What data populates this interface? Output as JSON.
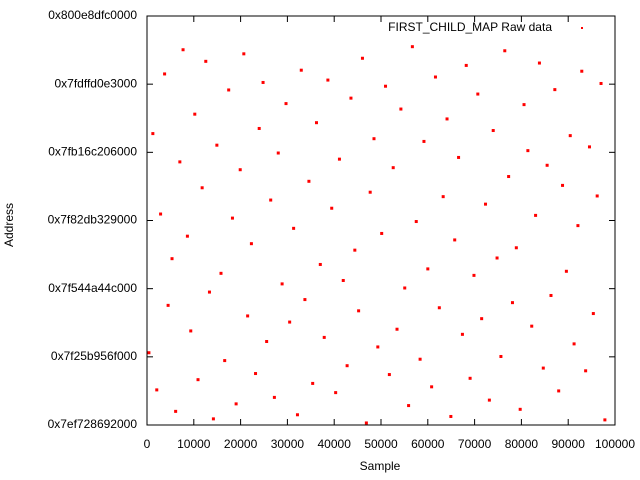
{
  "chart_data": {
    "type": "scatter",
    "xlabel": "Sample",
    "ylabel": "Address",
    "xlim": [
      0,
      100000
    ],
    "xticks": [
      0,
      10000,
      20000,
      30000,
      40000,
      50000,
      60000,
      70000,
      80000,
      90000,
      100000
    ],
    "ylim": [
      139600000000000,
      140800000000000
    ],
    "yticks": [
      {
        "value": 139600000000000,
        "label": "0x7ef728692000"
      },
      {
        "value": 139800000000000,
        "label": "0x7f25b956f000"
      },
      {
        "value": 140000000000000,
        "label": "0x7f544a44c000"
      },
      {
        "value": 140200000000000,
        "label": "0x7f82db329000"
      },
      {
        "value": 140400000000000,
        "label": "0x7fb16c206000"
      },
      {
        "value": 140600000000000,
        "label": "0x7fdffd0e3000"
      },
      {
        "value": 140800000000000,
        "label": "0x800e8dfc0000"
      }
    ],
    "legend": "top right",
    "series": [
      {
        "name": "FIRST_CHILD_MAP Raw data",
        "color": "#ff0000",
        "x": [
          412,
          1250,
          2087,
          2903,
          3760,
          4511,
          5348,
          6120,
          7019,
          7705,
          8634,
          9351,
          10210,
          10902,
          11783,
          12560,
          13347,
          14189,
          14930,
          15811,
          16602,
          17455,
          18260,
          19043,
          19917,
          20688,
          21504,
          22310,
          23192,
          23975,
          24801,
          25566,
          26433,
          27218,
          28046,
          28870,
          29704,
          30481,
          31329,
          32150,
          32964,
          33742,
          34598,
          35402,
          36215,
          37031,
          37868,
          38652,
          39470,
          40311,
          41122,
          41935,
          42760,
          43581,
          44409,
          45217,
          46038,
          46873,
          47690,
          48502,
          49321,
          50148,
          50966,
          51787,
          52608,
          53422,
          54251,
          55073,
          55896,
          56704,
          57532,
          58355,
          59178,
          60003,
          60817,
          61640,
          62462,
          63285,
          64110,
          64927,
          65751,
          66576,
          67399,
          68214,
          69040,
          69865,
          70688,
          71506,
          72331,
          73156,
          73978,
          74800,
          75623,
          76449,
          77271,
          78093,
          78915,
          79740,
          80562,
          81384,
          82207,
          83031,
          83853,
          84676,
          85498,
          86322,
          87145,
          87967,
          88790,
          89613,
          90436,
          91258,
          92080,
          92903,
          93726,
          94548,
          95371,
          96194,
          97016,
          97839
        ],
        "values": [
          139812000000000,
          140455000000000,
          139703000000000,
          140219000000000,
          140630000000000,
          139951000000000,
          140088000000000,
          139640000000000,
          140372000000000,
          140701000000000,
          140154000000000,
          139876000000000,
          140512000000000,
          139733000000000,
          140296000000000,
          140667000000000,
          139990000000000,
          139618000000000,
          140421000000000,
          140045000000000,
          139789000000000,
          140583000000000,
          140207000000000,
          139662000000000,
          140349000000000,
          140689000000000,
          139920000000000,
          140132000000000,
          139751000000000,
          140470000000000,
          140605000000000,
          139845000000000,
          140260000000000,
          139681000000000,
          140398000000000,
          140014000000000,
          140543000000000,
          139902000000000,
          140177000000000,
          139630000000000,
          140641000000000,
          139968000000000,
          140315000000000,
          139722000000000,
          140487000000000,
          140071000000000,
          139857000000000,
          140612000000000,
          140236000000000,
          139695000000000,
          140380000000000,
          140024000000000,
          139774000000000,
          140559000000000,
          140113000000000,
          139935000000000,
          140676000000000,
          139606000000000,
          140283000000000,
          140440000000000,
          139829000000000,
          140162000000000,
          140594000000000,
          139748000000000,
          140355000000000,
          139881000000000,
          140527000000000,
          140002000000000,
          139657000000000,
          140710000000000,
          140197000000000,
          139793000000000,
          140432000000000,
          140058000000000,
          139712000000000,
          140621000000000,
          139944000000000,
          140270000000000,
          140498000000000,
          139625000000000,
          140143000000000,
          140385000000000,
          139866000000000,
          140655000000000,
          139737000000000,
          140039000000000,
          140571000000000,
          139912000000000,
          140248000000000,
          139673000000000,
          140464000000000,
          140090000000000,
          139801000000000,
          140698000000000,
          140329000000000,
          139959000000000,
          140120000000000,
          139646000000000,
          140540000000000,
          140405000000000,
          139890000000000,
          140215000000000,
          140662000000000,
          139767000000000,
          140362000000000,
          139980000000000,
          140584000000000,
          139700000000000,
          140303000000000,
          140051000000000,
          140449000000000,
          139838000000000,
          140185000000000,
          140638000000000,
          139759000000000,
          140416000000000,
          139927000000000,
          140272000000000,
          140602000000000,
          139615000000000
        ]
      }
    ]
  }
}
